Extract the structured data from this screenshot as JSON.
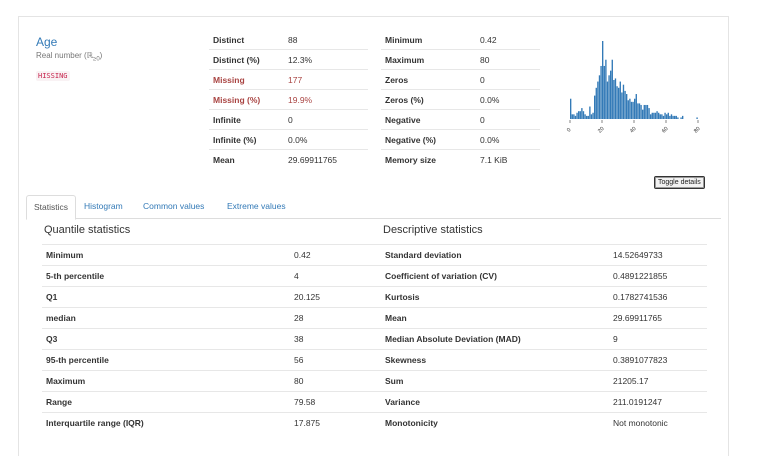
{
  "variable": {
    "name": "Age",
    "type_label": "Real number (ℝ",
    "type_sub": "≥0",
    "type_close": ")",
    "badge": "HISSING"
  },
  "overview_left": [
    {
      "label": "Distinct",
      "value": "88",
      "alert": false
    },
    {
      "label": "Distinct (%)",
      "value": "12.3%",
      "alert": false
    },
    {
      "label": "Missing",
      "value": "177",
      "alert": true
    },
    {
      "label": "Missing (%)",
      "value": "19.9%",
      "alert": true
    },
    {
      "label": "Infinite",
      "value": "0",
      "alert": false
    },
    {
      "label": "Infinite (%)",
      "value": "0.0%",
      "alert": false
    },
    {
      "label": "Mean",
      "value": "29.69911765",
      "alert": false
    }
  ],
  "overview_right": [
    {
      "label": "Minimum",
      "value": "0.42"
    },
    {
      "label": "Maximum",
      "value": "80"
    },
    {
      "label": "Zeros",
      "value": "0"
    },
    {
      "label": "Zeros (%)",
      "value": "0.0%"
    },
    {
      "label": "Negative",
      "value": "0"
    },
    {
      "label": "Negative (%)",
      "value": "0.0%"
    },
    {
      "label": "Memory size",
      "value": "7.1 KiB"
    }
  ],
  "toggle_label": "Toggle details",
  "tabs": [
    {
      "label": "Statistics",
      "active": true
    },
    {
      "label": "Histogram",
      "active": false
    },
    {
      "label": "Common values",
      "active": false
    },
    {
      "label": "Extreme values",
      "active": false
    }
  ],
  "quantile": {
    "title": "Quantile statistics",
    "rows": [
      {
        "label": "Minimum",
        "value": "0.42"
      },
      {
        "label": "5-th percentile",
        "value": "4"
      },
      {
        "label": "Q1",
        "value": "20.125"
      },
      {
        "label": "median",
        "value": "28"
      },
      {
        "label": "Q3",
        "value": "38"
      },
      {
        "label": "95-th percentile",
        "value": "56"
      },
      {
        "label": "Maximum",
        "value": "80"
      },
      {
        "label": "Range",
        "value": "79.58"
      },
      {
        "label": "Interquartile range (IQR)",
        "value": "17.875"
      }
    ]
  },
  "descriptive": {
    "title": "Descriptive statistics",
    "rows": [
      {
        "label": "Standard deviation",
        "value": "14.52649733"
      },
      {
        "label": "Coefficient of variation (CV)",
        "value": "0.4891221855"
      },
      {
        "label": "Kurtosis",
        "value": "0.1782741536"
      },
      {
        "label": "Mean",
        "value": "29.69911765"
      },
      {
        "label": "Median Absolute Deviation (MAD)",
        "value": "9"
      },
      {
        "label": "Skewness",
        "value": "0.3891077823"
      },
      {
        "label": "Sum",
        "value": "21205.17"
      },
      {
        "label": "Variance",
        "value": "211.0191247"
      },
      {
        "label": "Monotonicity",
        "value": "Not monotonic"
      }
    ]
  },
  "chart_data": {
    "type": "bar",
    "x_ticks": [
      "0",
      "20",
      "40",
      "60",
      "80"
    ],
    "xlim": [
      0,
      80
    ],
    "bar_color": "#337ab7",
    "values": [
      13,
      3,
      3,
      2,
      4,
      5,
      5,
      7,
      5,
      3,
      2,
      2,
      8,
      3,
      4,
      15,
      20,
      24,
      28,
      34,
      50,
      34,
      38,
      24,
      28,
      31,
      38,
      25,
      26,
      21,
      20,
      24,
      17,
      22,
      18,
      16,
      12,
      13,
      11,
      11,
      13,
      16,
      10,
      10,
      9,
      6,
      9,
      9,
      9,
      7,
      3,
      4,
      4,
      4,
      5,
      4,
      3,
      3,
      2,
      4,
      3,
      4,
      2,
      3,
      2,
      2,
      2,
      1,
      0,
      1,
      2,
      0,
      0,
      0,
      0,
      0,
      0,
      0,
      0,
      1
    ]
  }
}
